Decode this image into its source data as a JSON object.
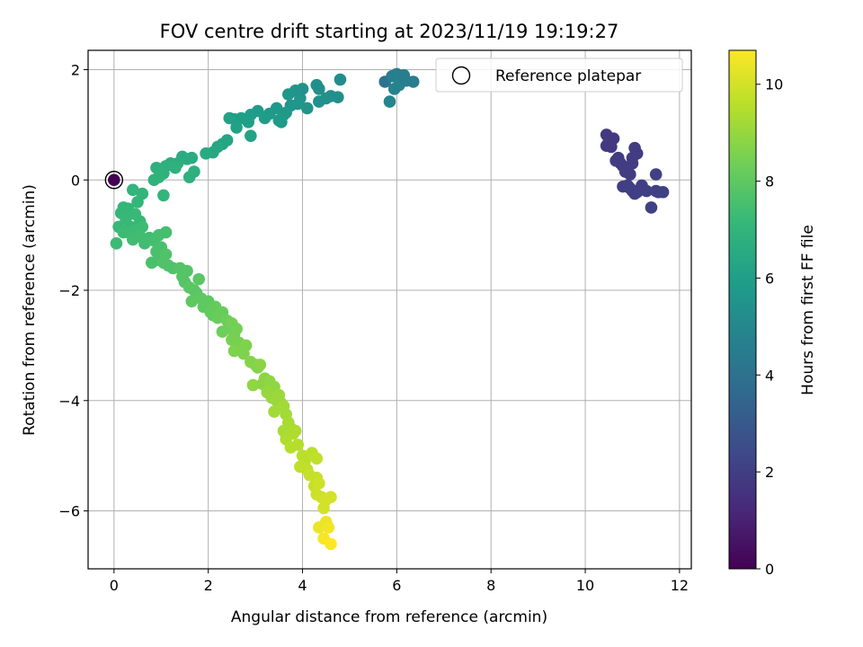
{
  "chart_data": {
    "type": "scatter",
    "title": "FOV centre drift starting at 2023/11/19 19:19:27",
    "xlabel": "Angular distance from reference (arcmin)",
    "ylabel": "Rotation from reference (arcmin)",
    "xlim": [
      -0.55,
      12.25
    ],
    "ylim": [
      -7.05,
      2.35
    ],
    "xticks": [
      0,
      2,
      4,
      6,
      8,
      10,
      12
    ],
    "yticks": [
      -6,
      -4,
      -2,
      0,
      2
    ],
    "grid": true,
    "legend": {
      "position": "top-right",
      "label": "Reference platepar"
    },
    "colorbar": {
      "label": "Hours from first FF file",
      "range": [
        0,
        10.7
      ],
      "ticks": [
        0,
        2,
        4,
        6,
        8,
        10
      ],
      "colormap": "viridis"
    },
    "reference_point": {
      "x": 0.0,
      "y": 0.0
    },
    "points": [
      {
        "x": 0.0,
        "y": 0.0,
        "t": 0.0
      },
      {
        "x": 10.45,
        "y": 0.82,
        "t": 1.8
      },
      {
        "x": 10.5,
        "y": 0.7,
        "t": 1.8
      },
      {
        "x": 10.55,
        "y": 0.6,
        "t": 1.8
      },
      {
        "x": 10.6,
        "y": 0.75,
        "t": 1.8
      },
      {
        "x": 10.45,
        "y": 0.62,
        "t": 1.8
      },
      {
        "x": 10.7,
        "y": 0.4,
        "t": 1.9
      },
      {
        "x": 10.75,
        "y": 0.3,
        "t": 1.9
      },
      {
        "x": 10.8,
        "y": 0.25,
        "t": 1.9
      },
      {
        "x": 10.65,
        "y": 0.35,
        "t": 1.9
      },
      {
        "x": 10.85,
        "y": 0.15,
        "t": 1.9
      },
      {
        "x": 10.8,
        "y": -0.12,
        "t": 2.0
      },
      {
        "x": 10.9,
        "y": -0.1,
        "t": 2.0
      },
      {
        "x": 10.95,
        "y": -0.15,
        "t": 2.0
      },
      {
        "x": 11.0,
        "y": -0.2,
        "t": 2.0
      },
      {
        "x": 11.05,
        "y": -0.25,
        "t": 2.0
      },
      {
        "x": 11.0,
        "y": 0.4,
        "t": 1.9
      },
      {
        "x": 11.05,
        "y": 0.58,
        "t": 1.9
      },
      {
        "x": 11.1,
        "y": 0.48,
        "t": 1.9
      },
      {
        "x": 11.0,
        "y": 0.3,
        "t": 1.9
      },
      {
        "x": 10.95,
        "y": 0.1,
        "t": 1.9
      },
      {
        "x": 11.1,
        "y": -0.22,
        "t": 2.0
      },
      {
        "x": 11.15,
        "y": -0.18,
        "t": 2.0
      },
      {
        "x": 11.2,
        "y": -0.1,
        "t": 2.0
      },
      {
        "x": 11.3,
        "y": -0.2,
        "t": 2.0
      },
      {
        "x": 11.4,
        "y": -0.5,
        "t": 2.1
      },
      {
        "x": 11.5,
        "y": -0.2,
        "t": 2.1
      },
      {
        "x": 11.55,
        "y": -0.22,
        "t": 2.1
      },
      {
        "x": 11.65,
        "y": -0.22,
        "t": 2.1
      },
      {
        "x": 11.5,
        "y": 0.1,
        "t": 2.1
      },
      {
        "x": 5.75,
        "y": 1.78,
        "t": 4.0
      },
      {
        "x": 5.9,
        "y": 1.88,
        "t": 4.5
      },
      {
        "x": 6.0,
        "y": 1.92,
        "t": 4.6
      },
      {
        "x": 6.1,
        "y": 1.85,
        "t": 4.7
      },
      {
        "x": 6.05,
        "y": 1.72,
        "t": 4.8
      },
      {
        "x": 5.95,
        "y": 1.65,
        "t": 4.8
      },
      {
        "x": 6.2,
        "y": 1.8,
        "t": 4.6
      },
      {
        "x": 6.35,
        "y": 1.78,
        "t": 4.5
      },
      {
        "x": 5.85,
        "y": 1.42,
        "t": 4.9
      },
      {
        "x": 6.15,
        "y": 1.9,
        "t": 4.5
      },
      {
        "x": 4.8,
        "y": 1.82,
        "t": 5.2
      },
      {
        "x": 4.75,
        "y": 1.5,
        "t": 5.3
      },
      {
        "x": 4.6,
        "y": 1.52,
        "t": 5.3
      },
      {
        "x": 4.5,
        "y": 1.48,
        "t": 5.4
      },
      {
        "x": 4.3,
        "y": 1.72,
        "t": 5.3
      },
      {
        "x": 4.35,
        "y": 1.65,
        "t": 5.3
      },
      {
        "x": 4.35,
        "y": 1.42,
        "t": 5.4
      },
      {
        "x": 4.1,
        "y": 1.3,
        "t": 5.5
      },
      {
        "x": 4.0,
        "y": 1.65,
        "t": 5.4
      },
      {
        "x": 3.95,
        "y": 1.48,
        "t": 5.5
      },
      {
        "x": 3.85,
        "y": 1.62,
        "t": 5.5
      },
      {
        "x": 3.9,
        "y": 1.38,
        "t": 5.6
      },
      {
        "x": 3.75,
        "y": 1.35,
        "t": 5.6
      },
      {
        "x": 3.7,
        "y": 1.55,
        "t": 5.6
      },
      {
        "x": 3.65,
        "y": 1.22,
        "t": 5.7
      },
      {
        "x": 3.6,
        "y": 1.18,
        "t": 5.7
      },
      {
        "x": 3.55,
        "y": 1.05,
        "t": 5.8
      },
      {
        "x": 3.5,
        "y": 1.08,
        "t": 5.8
      },
      {
        "x": 3.45,
        "y": 1.3,
        "t": 5.7
      },
      {
        "x": 3.3,
        "y": 1.2,
        "t": 5.8
      },
      {
        "x": 3.2,
        "y": 1.12,
        "t": 5.9
      },
      {
        "x": 3.05,
        "y": 1.25,
        "t": 5.9
      },
      {
        "x": 2.9,
        "y": 1.18,
        "t": 5.9
      },
      {
        "x": 2.85,
        "y": 1.05,
        "t": 6.0
      },
      {
        "x": 2.7,
        "y": 1.12,
        "t": 6.0
      },
      {
        "x": 2.55,
        "y": 1.1,
        "t": 6.0
      },
      {
        "x": 2.45,
        "y": 1.12,
        "t": 6.1
      },
      {
        "x": 2.6,
        "y": 0.95,
        "t": 6.1
      },
      {
        "x": 2.9,
        "y": 0.8,
        "t": 6.2
      },
      {
        "x": 2.4,
        "y": 0.72,
        "t": 6.3
      },
      {
        "x": 2.3,
        "y": 0.65,
        "t": 6.3
      },
      {
        "x": 2.2,
        "y": 0.6,
        "t": 6.4
      },
      {
        "x": 2.1,
        "y": 0.5,
        "t": 6.4
      },
      {
        "x": 1.95,
        "y": 0.48,
        "t": 6.5
      },
      {
        "x": 1.55,
        "y": 0.38,
        "t": 6.6
      },
      {
        "x": 1.65,
        "y": 0.4,
        "t": 6.6
      },
      {
        "x": 1.45,
        "y": 0.42,
        "t": 6.6
      },
      {
        "x": 1.35,
        "y": 0.3,
        "t": 6.7
      },
      {
        "x": 1.2,
        "y": 0.3,
        "t": 6.7
      },
      {
        "x": 1.1,
        "y": 0.25,
        "t": 6.8
      },
      {
        "x": 1.05,
        "y": 0.12,
        "t": 6.8
      },
      {
        "x": 0.9,
        "y": 0.22,
        "t": 6.8
      },
      {
        "x": 0.95,
        "y": 0.05,
        "t": 6.9
      },
      {
        "x": 0.85,
        "y": 0.0,
        "t": 6.9
      },
      {
        "x": 1.6,
        "y": 0.05,
        "t": 6.8
      },
      {
        "x": 1.7,
        "y": 0.15,
        "t": 6.8
      },
      {
        "x": 1.3,
        "y": 0.22,
        "t": 6.8
      },
      {
        "x": 1.05,
        "y": -0.28,
        "t": 7.0
      },
      {
        "x": 0.6,
        "y": -0.25,
        "t": 7.0
      },
      {
        "x": 0.4,
        "y": -0.18,
        "t": 7.0
      },
      {
        "x": 0.5,
        "y": -0.4,
        "t": 7.1
      },
      {
        "x": 0.3,
        "y": -0.52,
        "t": 7.1
      },
      {
        "x": 0.2,
        "y": -0.5,
        "t": 7.1
      },
      {
        "x": 0.15,
        "y": -0.6,
        "t": 7.1
      },
      {
        "x": 0.25,
        "y": -0.7,
        "t": 7.2
      },
      {
        "x": 0.45,
        "y": -0.62,
        "t": 7.2
      },
      {
        "x": 0.55,
        "y": -0.75,
        "t": 7.2
      },
      {
        "x": 0.35,
        "y": -0.85,
        "t": 7.2
      },
      {
        "x": 0.1,
        "y": -0.85,
        "t": 7.2
      },
      {
        "x": 0.2,
        "y": -0.95,
        "t": 7.3
      },
      {
        "x": 0.5,
        "y": -0.9,
        "t": 7.3
      },
      {
        "x": 0.6,
        "y": -0.85,
        "t": 7.3
      },
      {
        "x": 0.05,
        "y": -1.15,
        "t": 7.3
      },
      {
        "x": 0.3,
        "y": -0.95,
        "t": 7.3
      },
      {
        "x": 0.4,
        "y": -1.08,
        "t": 7.4
      },
      {
        "x": 0.55,
        "y": -1.02,
        "t": 7.4
      },
      {
        "x": 0.75,
        "y": -1.05,
        "t": 7.4
      },
      {
        "x": 0.65,
        "y": -1.15,
        "t": 7.4
      },
      {
        "x": 0.85,
        "y": -1.1,
        "t": 7.5
      },
      {
        "x": 0.95,
        "y": -1.0,
        "t": 7.5
      },
      {
        "x": 1.1,
        "y": -0.95,
        "t": 7.5
      },
      {
        "x": 0.9,
        "y": -1.3,
        "t": 7.6
      },
      {
        "x": 1.0,
        "y": -1.22,
        "t": 7.6
      },
      {
        "x": 0.8,
        "y": -1.5,
        "t": 7.6
      },
      {
        "x": 0.95,
        "y": -1.45,
        "t": 7.6
      },
      {
        "x": 1.05,
        "y": -1.5,
        "t": 7.7
      },
      {
        "x": 1.15,
        "y": -1.55,
        "t": 7.7
      },
      {
        "x": 1.25,
        "y": -1.6,
        "t": 7.7
      },
      {
        "x": 1.1,
        "y": -1.35,
        "t": 7.7
      },
      {
        "x": 1.4,
        "y": -1.6,
        "t": 7.8
      },
      {
        "x": 1.45,
        "y": -1.75,
        "t": 7.8
      },
      {
        "x": 1.5,
        "y": -1.85,
        "t": 7.8
      },
      {
        "x": 1.55,
        "y": -1.65,
        "t": 7.8
      },
      {
        "x": 1.6,
        "y": -1.95,
        "t": 7.9
      },
      {
        "x": 1.7,
        "y": -2.0,
        "t": 7.9
      },
      {
        "x": 1.75,
        "y": -2.05,
        "t": 7.9
      },
      {
        "x": 1.8,
        "y": -1.8,
        "t": 7.9
      },
      {
        "x": 1.65,
        "y": -2.2,
        "t": 8.0
      },
      {
        "x": 1.85,
        "y": -2.15,
        "t": 8.0
      },
      {
        "x": 1.9,
        "y": -2.3,
        "t": 8.0
      },
      {
        "x": 2.0,
        "y": -2.2,
        "t": 8.0
      },
      {
        "x": 2.05,
        "y": -2.4,
        "t": 8.1
      },
      {
        "x": 2.1,
        "y": -2.45,
        "t": 8.1
      },
      {
        "x": 2.15,
        "y": -2.3,
        "t": 8.1
      },
      {
        "x": 2.2,
        "y": -2.5,
        "t": 8.2
      },
      {
        "x": 2.3,
        "y": -2.4,
        "t": 8.2
      },
      {
        "x": 2.4,
        "y": -2.55,
        "t": 8.3
      },
      {
        "x": 2.3,
        "y": -2.75,
        "t": 8.3
      },
      {
        "x": 2.45,
        "y": -2.65,
        "t": 8.3
      },
      {
        "x": 2.5,
        "y": -2.6,
        "t": 8.4
      },
      {
        "x": 2.55,
        "y": -2.8,
        "t": 8.4
      },
      {
        "x": 2.6,
        "y": -2.7,
        "t": 8.4
      },
      {
        "x": 2.5,
        "y": -2.9,
        "t": 8.5
      },
      {
        "x": 2.65,
        "y": -2.95,
        "t": 8.5
      },
      {
        "x": 2.7,
        "y": -3.05,
        "t": 8.5
      },
      {
        "x": 2.55,
        "y": -3.1,
        "t": 8.6
      },
      {
        "x": 2.8,
        "y": -3.0,
        "t": 8.6
      },
      {
        "x": 2.75,
        "y": -3.15,
        "t": 8.6
      },
      {
        "x": 2.9,
        "y": -3.3,
        "t": 8.7
      },
      {
        "x": 3.0,
        "y": -3.35,
        "t": 8.7
      },
      {
        "x": 3.05,
        "y": -3.4,
        "t": 8.7
      },
      {
        "x": 3.1,
        "y": -3.35,
        "t": 8.8
      },
      {
        "x": 3.2,
        "y": -3.6,
        "t": 8.8
      },
      {
        "x": 3.15,
        "y": -3.7,
        "t": 8.8
      },
      {
        "x": 2.95,
        "y": -3.72,
        "t": 8.9
      },
      {
        "x": 3.3,
        "y": -3.65,
        "t": 8.9
      },
      {
        "x": 3.4,
        "y": -3.75,
        "t": 8.9
      },
      {
        "x": 3.25,
        "y": -3.85,
        "t": 9.0
      },
      {
        "x": 3.35,
        "y": -3.95,
        "t": 9.0
      },
      {
        "x": 3.45,
        "y": -4.0,
        "t": 9.1
      },
      {
        "x": 3.5,
        "y": -3.9,
        "t": 9.1
      },
      {
        "x": 3.55,
        "y": -4.05,
        "t": 9.1
      },
      {
        "x": 3.6,
        "y": -4.1,
        "t": 9.2
      },
      {
        "x": 3.4,
        "y": -4.2,
        "t": 9.2
      },
      {
        "x": 3.65,
        "y": -4.25,
        "t": 9.2
      },
      {
        "x": 3.7,
        "y": -4.4,
        "t": 9.3
      },
      {
        "x": 3.75,
        "y": -4.5,
        "t": 9.3
      },
      {
        "x": 3.6,
        "y": -4.55,
        "t": 9.3
      },
      {
        "x": 3.8,
        "y": -4.6,
        "t": 9.4
      },
      {
        "x": 3.85,
        "y": -4.55,
        "t": 9.4
      },
      {
        "x": 3.65,
        "y": -4.7,
        "t": 9.4
      },
      {
        "x": 3.9,
        "y": -4.8,
        "t": 9.5
      },
      {
        "x": 3.75,
        "y": -4.85,
        "t": 9.5
      },
      {
        "x": 4.0,
        "y": -5.0,
        "t": 9.6
      },
      {
        "x": 4.05,
        "y": -5.1,
        "t": 9.6
      },
      {
        "x": 4.2,
        "y": -4.95,
        "t": 9.6
      },
      {
        "x": 4.3,
        "y": -5.05,
        "t": 9.7
      },
      {
        "x": 3.95,
        "y": -5.2,
        "t": 9.7
      },
      {
        "x": 4.1,
        "y": -5.25,
        "t": 9.7
      },
      {
        "x": 4.15,
        "y": -5.35,
        "t": 9.8
      },
      {
        "x": 4.3,
        "y": -5.4,
        "t": 9.8
      },
      {
        "x": 4.25,
        "y": -5.55,
        "t": 9.8
      },
      {
        "x": 4.35,
        "y": -5.5,
        "t": 9.9
      },
      {
        "x": 4.3,
        "y": -5.7,
        "t": 9.9
      },
      {
        "x": 4.4,
        "y": -5.75,
        "t": 9.9
      },
      {
        "x": 4.5,
        "y": -5.8,
        "t": 10.0
      },
      {
        "x": 4.6,
        "y": -5.75,
        "t": 10.0
      },
      {
        "x": 4.45,
        "y": -5.95,
        "t": 10.0
      },
      {
        "x": 4.35,
        "y": -6.3,
        "t": 10.4
      },
      {
        "x": 4.5,
        "y": -6.2,
        "t": 10.4
      },
      {
        "x": 4.55,
        "y": -6.3,
        "t": 10.5
      },
      {
        "x": 4.45,
        "y": -6.5,
        "t": 10.6
      },
      {
        "x": 4.6,
        "y": -6.6,
        "t": 10.7
      }
    ]
  }
}
